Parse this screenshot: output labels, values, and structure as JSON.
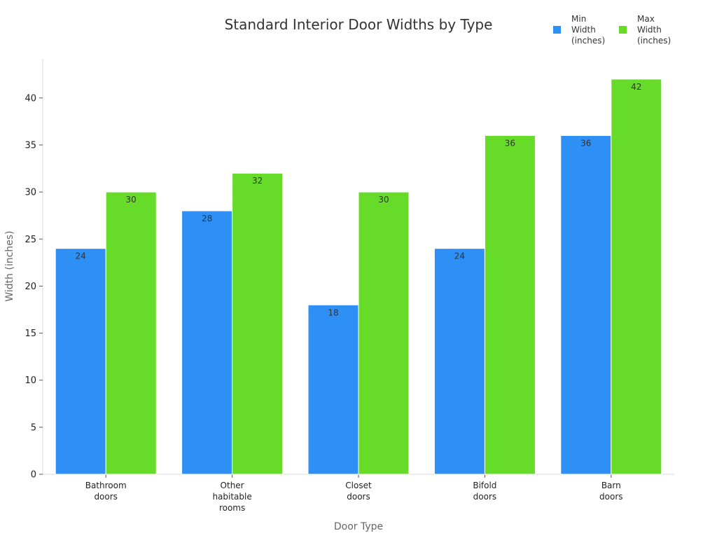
{
  "chart_data": {
    "type": "bar",
    "title": "Standard Interior Door Widths by Type",
    "xlabel": "Door Type",
    "ylabel": "Width (inches)",
    "categories": [
      [
        "Bathroom",
        "doors"
      ],
      [
        "Other",
        "habitable",
        "rooms"
      ],
      [
        "Closet",
        "doors"
      ],
      [
        "Bifold",
        "doors"
      ],
      [
        "Barn",
        "doors"
      ]
    ],
    "series": [
      {
        "name": "Min Width (inches)",
        "legend_lines": [
          "Min",
          "Width",
          "(inches)"
        ],
        "color": "#2e8ff5",
        "values": [
          24,
          28,
          18,
          24,
          36
        ]
      },
      {
        "name": "Max Width (inches)",
        "legend_lines": [
          "Max",
          "Width",
          "(inches)"
        ],
        "color": "#66db28",
        "values": [
          30,
          32,
          30,
          36,
          42
        ]
      }
    ],
    "ylim": [
      0,
      44
    ],
    "yticks": [
      0,
      5,
      10,
      15,
      20,
      25,
      30,
      35,
      40
    ],
    "grid": false,
    "legend_position": "top-right"
  }
}
